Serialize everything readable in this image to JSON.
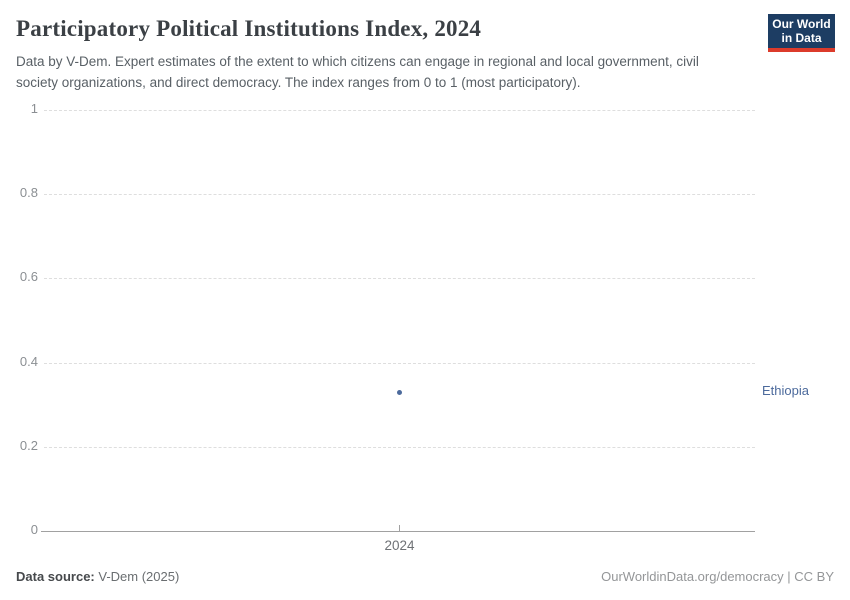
{
  "header": {
    "title": "Participatory Political Institutions Index, 2024",
    "subtitle": "Data by V-Dem. Expert estimates of the extent to which citizens can engage in regional and local government, civil society organizations, and direct democracy. The index ranges from 0 to 1 (most participatory).",
    "logo": {
      "line1": "Our World",
      "line2": "in Data",
      "bg_color": "#1d3d63",
      "accent_color": "#dc3b2b"
    }
  },
  "chart_data": {
    "type": "scatter",
    "title": "Participatory Political Institutions Index, 2024",
    "xlabel": "",
    "ylabel": "",
    "ylim": [
      0,
      1
    ],
    "ytick_values": [
      0,
      0.2,
      0.4,
      0.6,
      0.8,
      1
    ],
    "ytick_labels": [
      "0",
      "0.2",
      "0.4",
      "0.6",
      "0.8",
      "1"
    ],
    "xtick_labels": [
      "2024"
    ],
    "grid": "horizontal-dashed",
    "legend_position": "entity-label-right",
    "series": [
      {
        "name": "Ethiopia",
        "color": "#4c6a9c",
        "points": [
          {
            "x": 2024,
            "y": 0.33
          }
        ]
      }
    ]
  },
  "footer": {
    "source_label": "Data source:",
    "source_value": " V-Dem (2025)",
    "credit": "OurWorldinData.org/democracy | CC BY"
  }
}
